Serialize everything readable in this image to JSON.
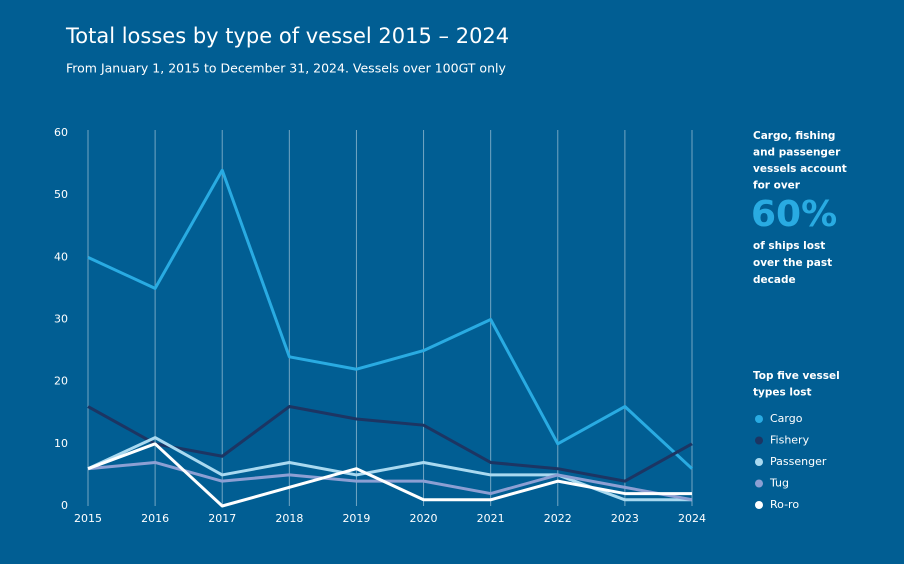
{
  "chart_data": {
    "type": "line",
    "title": "Total losses by type of vessel 2015 – 2024",
    "subtitle": "From January 1, 2015 to December 31, 2024. Vessels over 100GT only",
    "x": [
      2015,
      2016,
      2017,
      2018,
      2019,
      2020,
      2021,
      2022,
      2023,
      2024
    ],
    "xlim": [
      2015,
      2024
    ],
    "xticks": [
      2015,
      2016,
      2017,
      2018,
      2019,
      2020,
      2021,
      2022,
      2023,
      2024
    ],
    "ylim": [
      0,
      60
    ],
    "yticks": [
      0,
      10,
      20,
      30,
      40,
      50,
      60
    ],
    "grid": "x",
    "series": [
      {
        "name": "Cargo",
        "color": "#29abe2",
        "values": [
          40,
          35,
          54,
          24,
          22,
          25,
          30,
          10,
          16,
          6
        ]
      },
      {
        "name": "Fishery",
        "color": "#1c3563",
        "values": [
          16,
          10,
          8,
          16,
          14,
          13,
          7,
          6,
          4,
          10
        ]
      },
      {
        "name": "Passenger",
        "color": "#a9d9f0",
        "values": [
          6,
          11,
          5,
          7,
          5,
          7,
          5,
          5,
          1,
          1
        ]
      },
      {
        "name": "Tug",
        "color": "#8c9fd3",
        "values": [
          6,
          7,
          4,
          5,
          4,
          4,
          2,
          5,
          3,
          1
        ]
      },
      {
        "name": "Ro-ro",
        "color": "#ffffff",
        "values": [
          6,
          10,
          0,
          3,
          6,
          1,
          1,
          4,
          2,
          2
        ]
      }
    ],
    "annotation": {
      "lead": [
        "Cargo, fishing",
        "and passenger",
        "vessels account",
        "for over"
      ],
      "highlight": "60%",
      "tail": [
        "of ships lost",
        "over the past",
        "decade"
      ]
    },
    "legend_title": [
      "Top five vessel",
      "types lost"
    ]
  }
}
